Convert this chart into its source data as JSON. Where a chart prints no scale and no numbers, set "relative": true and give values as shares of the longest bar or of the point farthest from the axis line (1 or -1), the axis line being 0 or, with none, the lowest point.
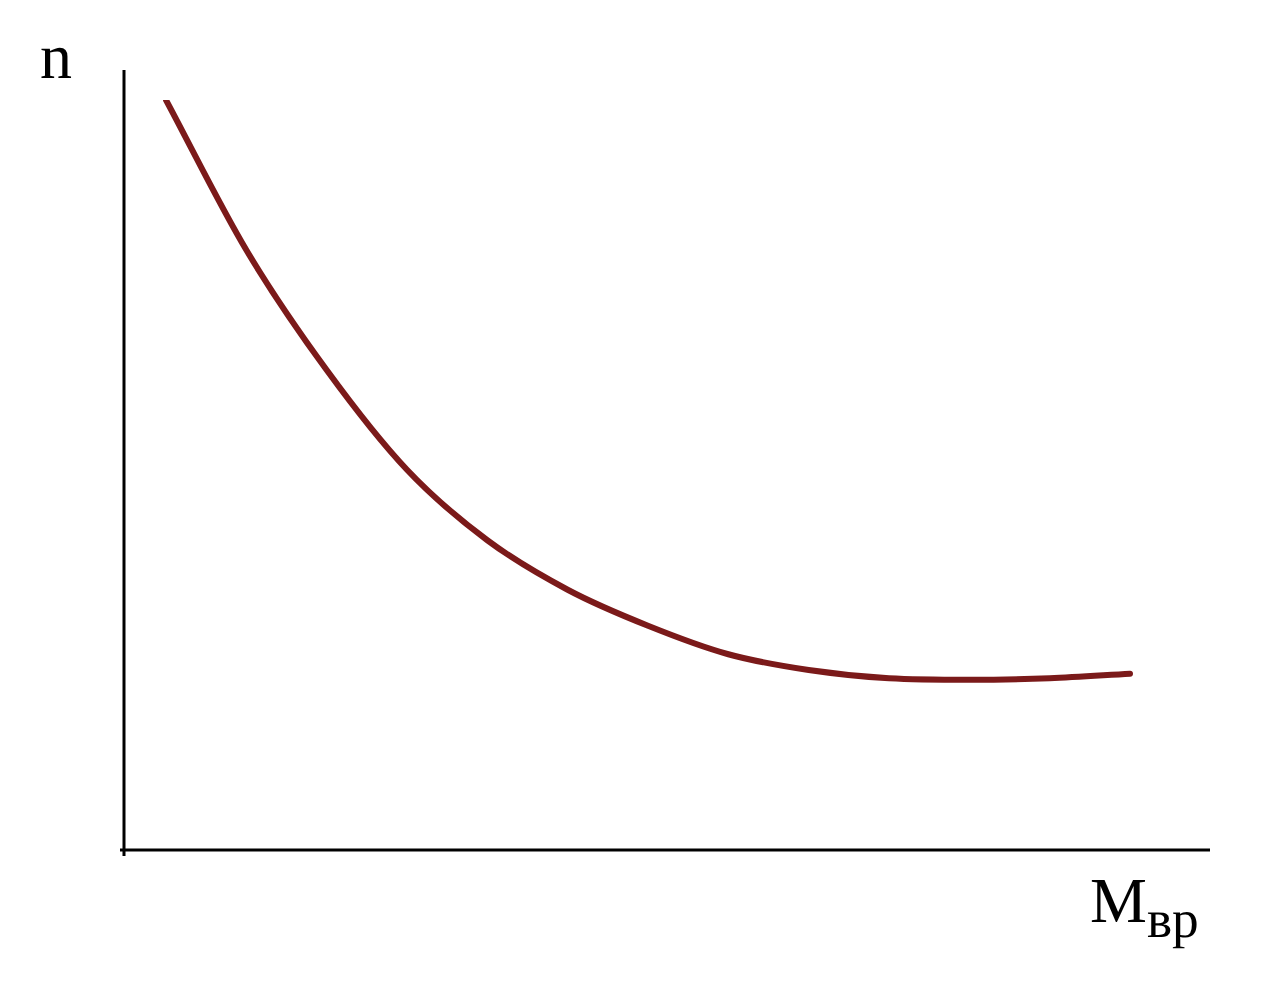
{
  "chart_data": {
    "type": "line",
    "relative": true,
    "ylabel": "n",
    "xlabel": "M$_{вр}$",
    "categories": [
      null,
      null,
      null,
      null,
      null,
      null,
      null,
      null,
      null,
      null,
      null,
      null,
      null
    ],
    "series": [
      {
        "color": "#7b1a1a",
        "values": [
          1,
          0.8,
          0.64,
          0.507,
          0.413,
          0.347,
          0.299,
          0.261,
          0.24,
          0.229,
          0.227,
          0.229,
          0.235
        ]
      }
    ],
    "grid": false,
    "legend": false,
    "marker": "none",
    "line_style": "solid"
  }
}
